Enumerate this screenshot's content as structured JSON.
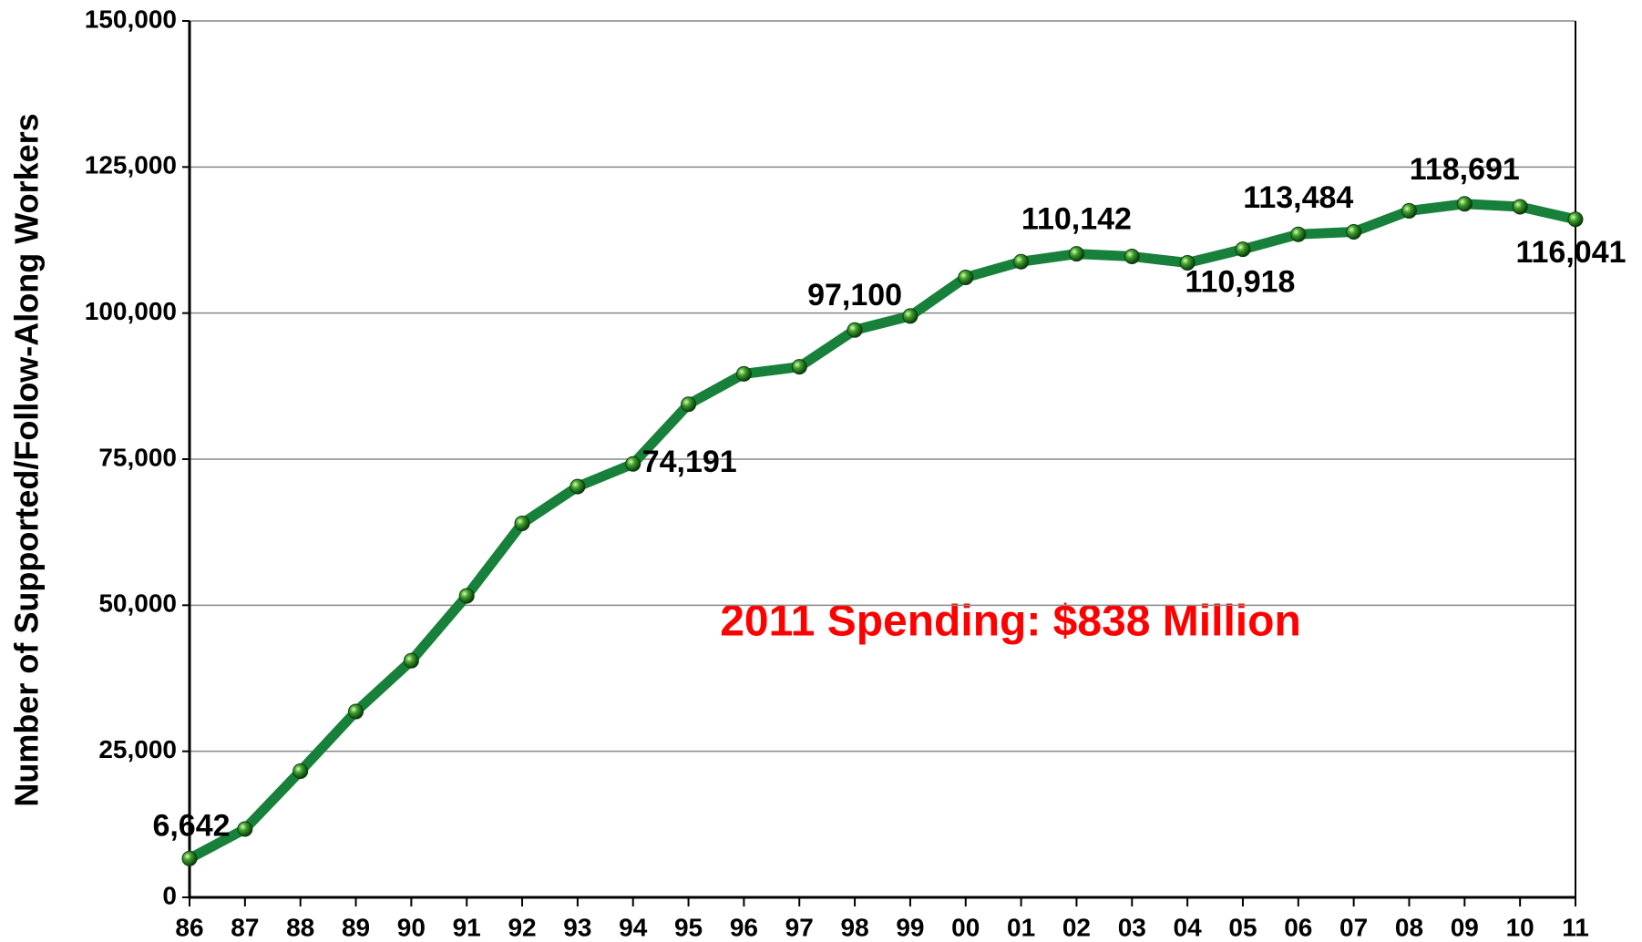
{
  "chart_data": {
    "type": "line",
    "y_label": "Number of Supported/Follow-Along Workers",
    "annotation": "2011 Spending: $838 Million",
    "categories": [
      "86",
      "87",
      "88",
      "89",
      "90",
      "91",
      "92",
      "93",
      "94",
      "95",
      "96",
      "97",
      "98",
      "99",
      "00",
      "01",
      "02",
      "03",
      "04",
      "05",
      "06",
      "07",
      "08",
      "09",
      "10",
      "11"
    ],
    "series": [
      {
        "name": "Supported/Follow-Along Workers",
        "color": "#17803a",
        "values": [
          6642,
          11700,
          21600,
          31800,
          40500,
          51600,
          64000,
          70300,
          74191,
          84400,
          89600,
          90800,
          97100,
          99500,
          106100,
          108800,
          110142,
          109700,
          108600,
          110918,
          113484,
          113900,
          117500,
          118691,
          118200,
          116041
        ],
        "value_labels": [
          "6,642",
          null,
          null,
          null,
          null,
          null,
          null,
          null,
          "74,191",
          null,
          null,
          null,
          "97,100",
          null,
          null,
          null,
          "110,142",
          null,
          null,
          "110,918",
          "113,484",
          null,
          null,
          "118,691",
          null,
          "116,041"
        ]
      }
    ],
    "ylim": [
      0,
      150000
    ],
    "yticks": [
      0,
      {
        "value": 25000,
        "label": "25,000"
      },
      {
        "value": 50000,
        "label": "50,000"
      },
      {
        "value": 75000,
        "label": "75,000"
      },
      {
        "value": 100000,
        "label": "100,000"
      },
      {
        "value": 125000,
        "label": "125,000"
      },
      {
        "value": 150000,
        "label": "150,000"
      }
    ],
    "grid": true
  }
}
